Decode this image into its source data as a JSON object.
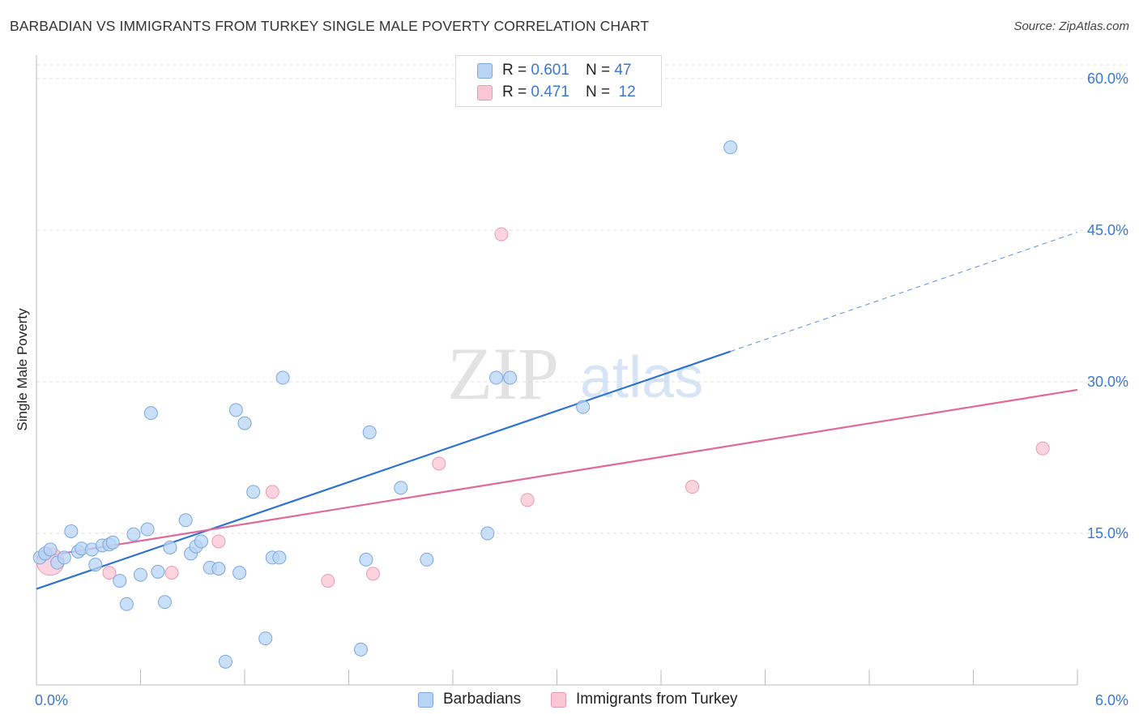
{
  "header": {
    "title": "BARBADIAN VS IMMIGRANTS FROM TURKEY SINGLE MALE POVERTY CORRELATION CHART",
    "source": "Source: ZipAtlas.com"
  },
  "watermark": {
    "zip": "ZIP",
    "atlas": "atlas"
  },
  "legend": {
    "rows": [
      {
        "r_label": "R =",
        "r_value": "0.601",
        "n_label": "N =",
        "n_value": "47"
      },
      {
        "r_label": "R =",
        "r_value": "0.471",
        "n_label": "N =",
        "n_value": "12"
      }
    ]
  },
  "bottom_legend": {
    "items": [
      "Barbadians",
      "Immigrants from Turkey"
    ]
  },
  "colors": {
    "blue_fill": "#b8d4f5",
    "blue_stroke": "#7aa7e0",
    "blue_line": "#2e72d2",
    "pink_fill": "#f9c6d6",
    "pink_stroke": "#e89ab3",
    "pink_line": "#e0699a",
    "tick_label": "#3a78d4",
    "grid": "#dddddd"
  },
  "chart_data": {
    "type": "scatter",
    "title": "BARBADIAN VS IMMIGRANTS FROM TURKEY SINGLE MALE POVERTY CORRELATION CHART",
    "xlabel": "",
    "ylabel": "Single Male Poverty",
    "xlim": [
      0,
      6
    ],
    "ylim": [
      0,
      60
    ],
    "x_tick_labels": [
      "0.0%",
      "6.0%"
    ],
    "y_ticks": [
      15,
      30,
      45,
      60
    ],
    "y_tick_labels": [
      "15.0%",
      "30.0%",
      "45.0%",
      "60.0%"
    ],
    "grid": "horizontal dashed",
    "legend_position": "top-center",
    "series": [
      {
        "name": "Barbadians",
        "color": "#b8d4f5",
        "r": 0.601,
        "n": 47,
        "points": [
          [
            0.02,
            12.6
          ],
          [
            0.05,
            13.0
          ],
          [
            0.08,
            13.4
          ],
          [
            0.12,
            12.1
          ],
          [
            0.16,
            12.6
          ],
          [
            0.2,
            15.2
          ],
          [
            0.24,
            13.2
          ],
          [
            0.26,
            13.5
          ],
          [
            0.32,
            13.4
          ],
          [
            0.34,
            11.9
          ],
          [
            0.38,
            13.8
          ],
          [
            0.42,
            13.9
          ],
          [
            0.44,
            14.1
          ],
          [
            0.48,
            10.3
          ],
          [
            0.52,
            8.0
          ],
          [
            0.56,
            14.9
          ],
          [
            0.6,
            10.9
          ],
          [
            0.64,
            15.4
          ],
          [
            0.66,
            26.9
          ],
          [
            0.7,
            11.2
          ],
          [
            0.74,
            8.2
          ],
          [
            0.77,
            13.6
          ],
          [
            0.86,
            16.3
          ],
          [
            0.89,
            13.0
          ],
          [
            0.92,
            13.7
          ],
          [
            0.95,
            14.2
          ],
          [
            1.0,
            11.6
          ],
          [
            1.05,
            11.5
          ],
          [
            1.09,
            2.3
          ],
          [
            1.15,
            27.2
          ],
          [
            1.17,
            11.1
          ],
          [
            1.2,
            25.9
          ],
          [
            1.25,
            19.1
          ],
          [
            1.32,
            4.6
          ],
          [
            1.36,
            12.6
          ],
          [
            1.4,
            12.6
          ],
          [
            1.42,
            30.4
          ],
          [
            1.87,
            3.5
          ],
          [
            1.9,
            12.4
          ],
          [
            1.92,
            25.0
          ],
          [
            2.1,
            19.5
          ],
          [
            2.25,
            12.4
          ],
          [
            2.6,
            15.0
          ],
          [
            2.65,
            30.4
          ],
          [
            2.73,
            30.4
          ],
          [
            3.15,
            27.5
          ],
          [
            4.0,
            53.2
          ]
        ],
        "trendline": {
          "x": [
            0,
            4.0
          ],
          "y": [
            9.5,
            33.0
          ],
          "dashed_extension": {
            "x": [
              4.0,
              6.0
            ],
            "y": [
              33.0,
              44.8
            ]
          }
        }
      },
      {
        "name": "Immigrants from Turkey",
        "color": "#f9c6d6",
        "r": 0.471,
        "n": 12,
        "points": [
          [
            0.08,
            12.2
          ],
          [
            0.42,
            11.1
          ],
          [
            0.78,
            11.1
          ],
          [
            1.05,
            14.2
          ],
          [
            1.36,
            19.1
          ],
          [
            1.68,
            10.3
          ],
          [
            1.94,
            11.0
          ],
          [
            2.32,
            21.9
          ],
          [
            2.68,
            44.6
          ],
          [
            2.83,
            18.3
          ],
          [
            3.78,
            19.6
          ],
          [
            5.8,
            23.4
          ]
        ],
        "trendline": {
          "x": [
            0,
            6.0
          ],
          "y": [
            12.6,
            29.2
          ]
        }
      }
    ]
  }
}
